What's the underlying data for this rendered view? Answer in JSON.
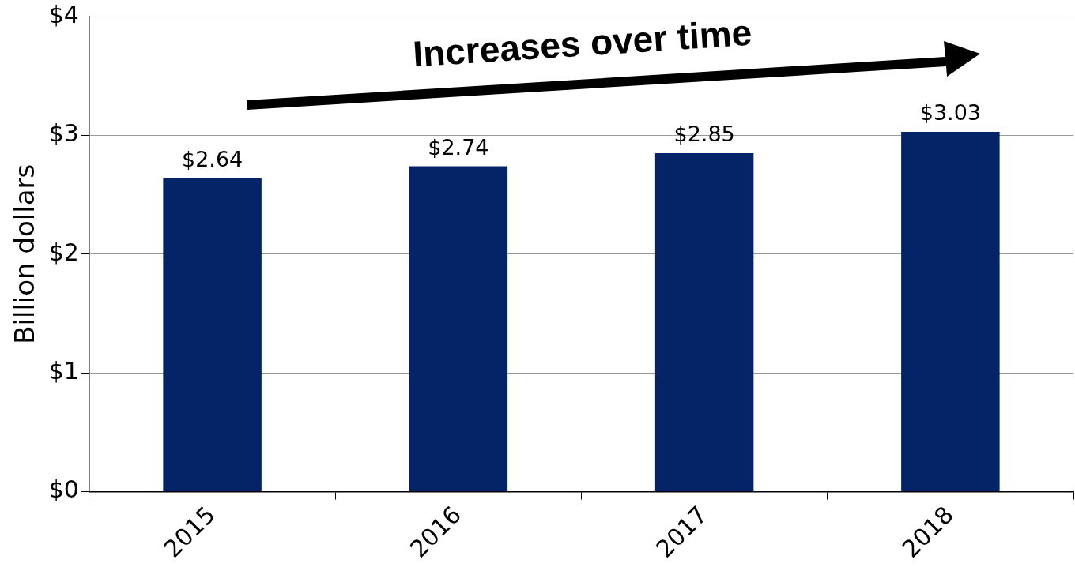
{
  "chart_data": {
    "type": "bar",
    "ylabel": "Billion dollars",
    "categories": [
      "2015",
      "2016",
      "2017",
      "2018"
    ],
    "values": [
      2.64,
      2.74,
      2.85,
      3.03
    ],
    "color": "#042467",
    "ylim": [
      0,
      4
    ],
    "yticks": [
      {
        "value": 0,
        "label": "$0"
      },
      {
        "value": 1,
        "label": "$1"
      },
      {
        "value": 2,
        "label": "$2"
      },
      {
        "value": 3,
        "label": "$3"
      },
      {
        "value": 4,
        "label": "$4"
      }
    ],
    "grid": "y",
    "data_labels": true,
    "value_labels": [
      "$2.64",
      "$2.74",
      "$2.85",
      "$3.03"
    ],
    "annotations": [
      "Increases over time"
    ]
  }
}
